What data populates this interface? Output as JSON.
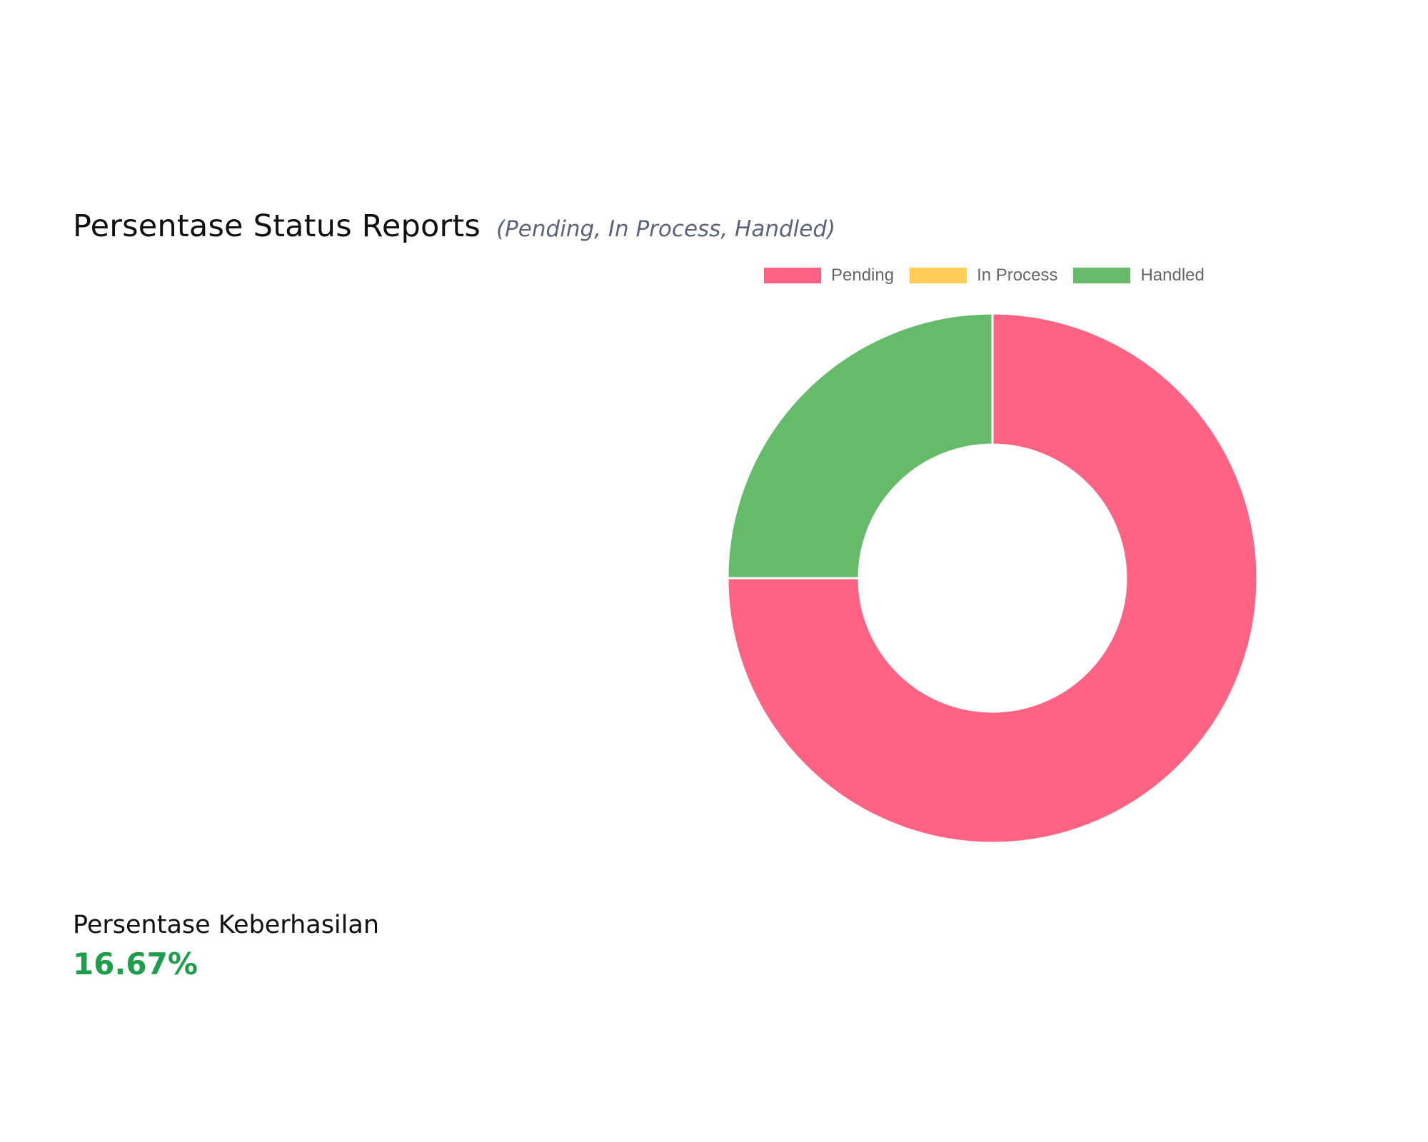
{
  "header": {
    "title": "Persentase Status Reports",
    "subtitle": "(Pending, In Process, Handled)"
  },
  "success": {
    "label": "Persentase Keberhasilan",
    "value": "16.67%"
  },
  "chart_data": {
    "type": "pie",
    "variant": "doughnut",
    "legend_position": "top",
    "categories": [
      "Pending",
      "In Process",
      "Handled"
    ],
    "values": [
      75,
      0,
      25
    ],
    "colors": [
      "#ff6384",
      "#ffcd56",
      "#66bb6a"
    ]
  }
}
